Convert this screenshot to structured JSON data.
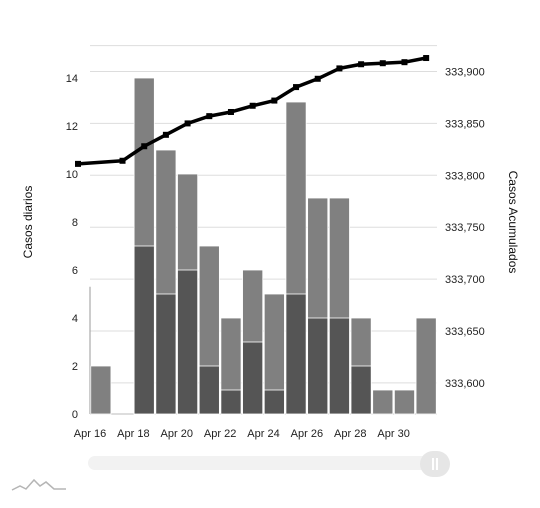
{
  "chart_data": {
    "type": "bar",
    "categories": [
      "Apr 16",
      "Apr 17",
      "Apr 18",
      "Apr 19",
      "Apr 20",
      "Apr 21",
      "Apr 22",
      "Apr 23",
      "Apr 24",
      "Apr 25",
      "Apr 26",
      "Apr 27",
      "Apr 28",
      "Apr 29",
      "Apr 30",
      "May 01"
    ],
    "series": [
      {
        "type": "bar",
        "axis": "left",
        "values": [
          2,
          0,
          14,
          11,
          10,
          7,
          4,
          6,
          5,
          13,
          9,
          9,
          4,
          1,
          1,
          4
        ]
      },
      {
        "type": "bar",
        "axis": "left",
        "values": [
          0,
          0,
          7,
          5,
          6,
          2,
          1,
          3,
          1,
          5,
          4,
          4,
          2,
          0,
          0,
          0
        ]
      },
      {
        "type": "line",
        "axis": "right",
        "values": [
          333811,
          333814,
          333828,
          333839,
          333850,
          333857,
          333861,
          333867,
          333872,
          333885,
          333893,
          333903,
          333907,
          333908,
          333909,
          333913
        ]
      }
    ],
    "x_tick_labels": [
      "Apr 16",
      "Apr 18",
      "Apr 20",
      "Apr 22",
      "Apr 24",
      "Apr 26",
      "Apr 28",
      "Apr 30"
    ],
    "ylabel_left": "Casos diarios",
    "ylabel_right": "Casos Acumulados",
    "ylim_left": [
      0,
      16
    ],
    "ylim_right": [
      333570,
      333940
    ],
    "yticks_left": [
      "0",
      "2",
      "4",
      "6",
      "8",
      "10",
      "12",
      "14"
    ],
    "yticks_right": [
      "333,600",
      "333,650",
      "333,700",
      "333,750",
      "333,800",
      "333,850",
      "333,900"
    ],
    "grid": true,
    "colors": {
      "bar_light": "#808080",
      "bar_dark": "#555555",
      "line": "#000000",
      "grid": "#dddddd"
    }
  }
}
